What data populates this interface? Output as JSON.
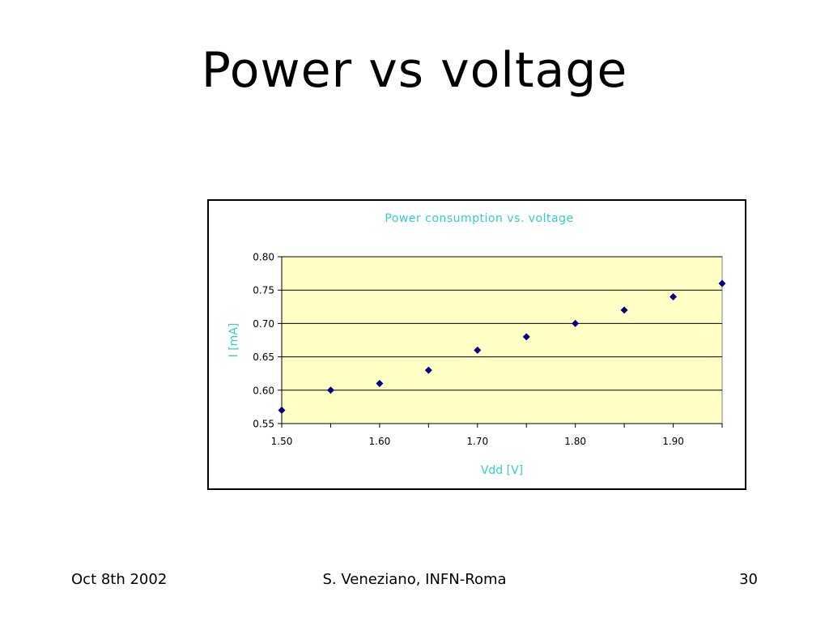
{
  "slide": {
    "title": "Power vs voltage",
    "footer_date": "Oct 8th 2002",
    "footer_author": "S. Veneziano, INFN-Roma",
    "footer_page": "30"
  },
  "colors": {
    "plot_background": "#ffffc6",
    "marker": "#000080",
    "label_text": "#33cccc",
    "grid": "#000000"
  },
  "chart_data": {
    "type": "scatter",
    "title": "Power consumption vs. voltage",
    "xlabel": "Vdd [V]",
    "ylabel": "I [mA]",
    "xlim": [
      1.5,
      1.95
    ],
    "ylim": [
      0.55,
      0.8
    ],
    "xticks": [
      "1.50",
      "1.60",
      "1.70",
      "1.80",
      "1.90"
    ],
    "yticks": [
      "0.55",
      "0.60",
      "0.65",
      "0.70",
      "0.75",
      "0.80"
    ],
    "grid": true,
    "legend": "none",
    "marker": "diamond",
    "x": [
      1.5,
      1.55,
      1.6,
      1.65,
      1.7,
      1.75,
      1.8,
      1.85,
      1.9,
      1.95
    ],
    "y": [
      0.57,
      0.6,
      0.61,
      0.63,
      0.66,
      0.68,
      0.7,
      0.72,
      0.74,
      0.76
    ]
  }
}
